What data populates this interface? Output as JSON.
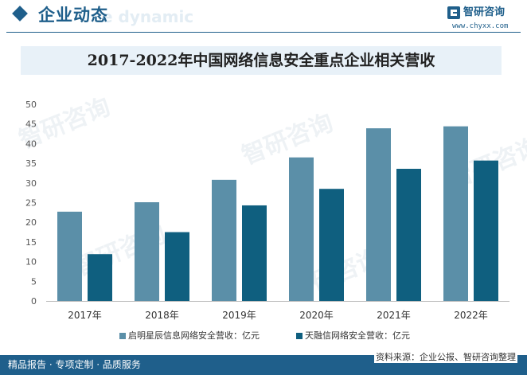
{
  "header": {
    "section_title": "企业动态",
    "section_subtitle": "e dynamic",
    "brand_name": "智研咨询",
    "brand_url": "www.chyxx.com",
    "brand_logo_icon": "chyxx-logo-icon"
  },
  "colors": {
    "primary": "#1f5f8b",
    "series_a": "#5b8fa8",
    "series_b": "#0f5f7f",
    "title_band": "#e8f1f8",
    "footer": "#1f5f8b"
  },
  "watermark": {
    "text": "智研咨询"
  },
  "footer": {
    "left": "精品报告 · 专项定制 · 品质服务",
    "right": "资料来源：企业公报、智研咨询整理"
  },
  "chart_data": {
    "type": "bar",
    "title": "2017-2022年中国网络信息安全重点企业相关营收",
    "categories": [
      "2017年",
      "2018年",
      "2019年",
      "2020年",
      "2021年",
      "2022年"
    ],
    "series": [
      {
        "name": "启明星辰信息网络安全营收：亿元",
        "values": [
          22.7,
          25.1,
          30.8,
          36.5,
          43.9,
          44.4
        ]
      },
      {
        "name": "天融信网络安全营收：亿元",
        "values": [
          11.9,
          17.5,
          24.3,
          28.5,
          33.6,
          35.7
        ]
      }
    ],
    "ylim": [
      0,
      50
    ],
    "yticks": [
      0,
      5,
      10,
      15,
      20,
      25,
      30,
      35,
      40,
      45,
      50
    ],
    "grid": false,
    "legend_position": "bottom"
  }
}
